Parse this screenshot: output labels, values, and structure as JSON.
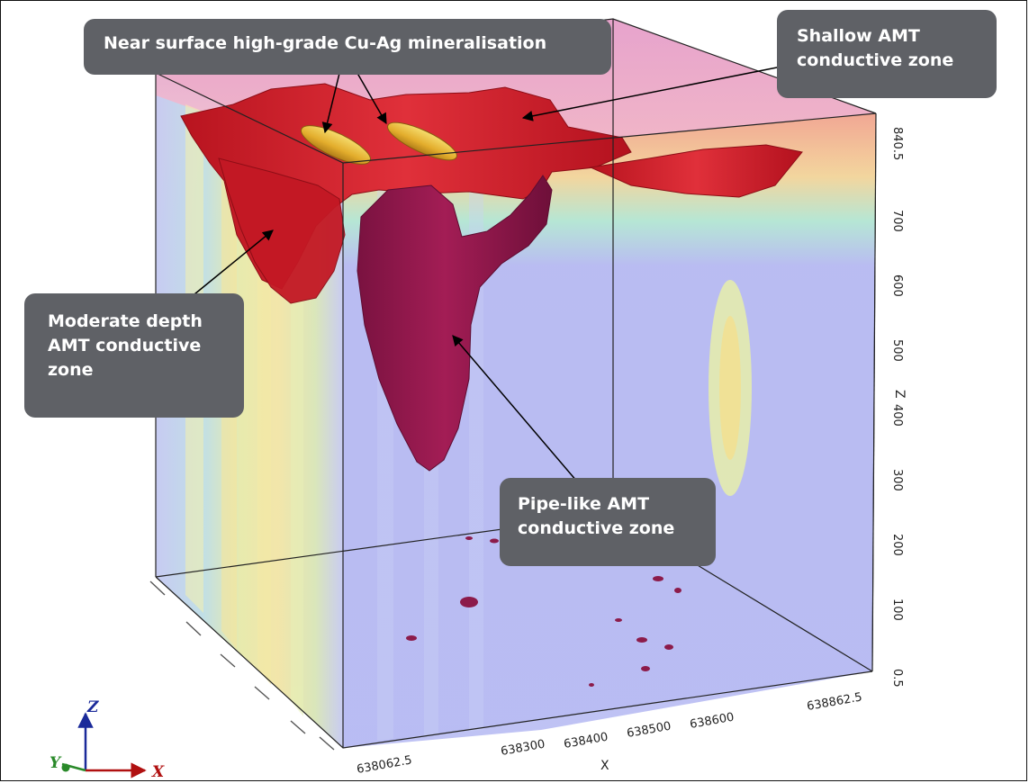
{
  "callouts": {
    "near_surface": "Near surface high-grade Cu-Ag mineralisation",
    "shallow_l1": "Shallow AMT",
    "shallow_l2": "conductive zone",
    "moderate_l1": "Moderate depth",
    "moderate_l2": "AMT conductive",
    "moderate_l3": "zone",
    "pipe_l1": "Pipe-like AMT",
    "pipe_l2": "conductive zone"
  },
  "z_axis": {
    "label": "Z",
    "ticks": [
      "0.5",
      "100",
      "200",
      "300",
      "400",
      "500",
      "600",
      "700",
      "840.5"
    ]
  },
  "x_axis": {
    "label": "X",
    "ticks": [
      "638062.5",
      "638300",
      "638400",
      "638500",
      "638600",
      "638862.5"
    ]
  },
  "gizmo": {
    "z": "Z",
    "x": "X",
    "y": "Y"
  },
  "colors": {
    "conductor_red": "#d8202c",
    "pipe_magenta": "#9b1a4e",
    "mineralisation": "#e7b93a",
    "background_resistive": "#b9bdf2",
    "callout_bg": "#5f6166"
  }
}
